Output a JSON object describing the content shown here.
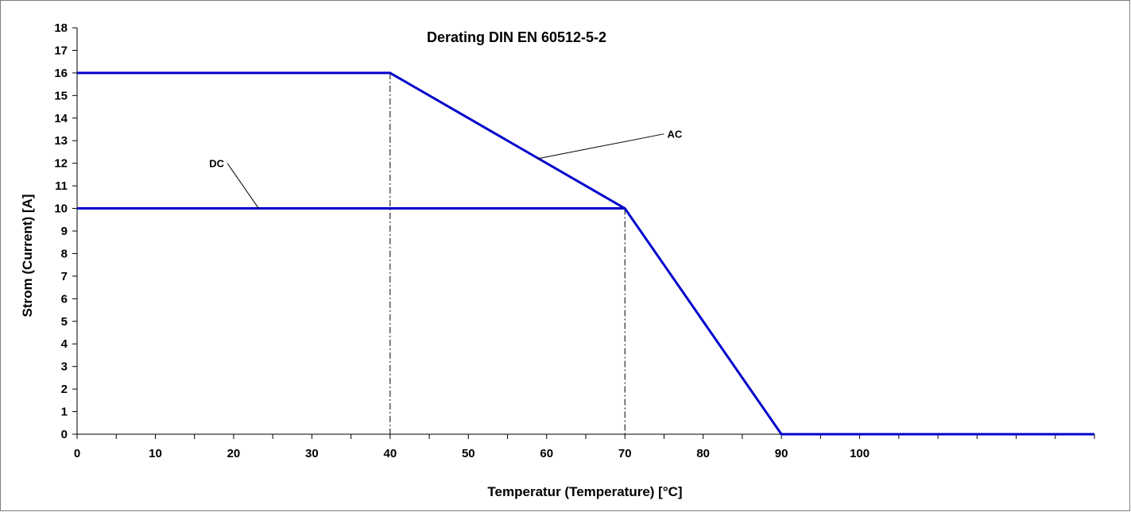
{
  "chart_data": {
    "type": "line",
    "title": "Derating DIN EN 60512-5-2",
    "xlabel": "Temperatur (Temperature) [°C]",
    "ylabel": "Strom (Current) [A]",
    "xlim": [
      0,
      130
    ],
    "ylim": [
      0,
      18
    ],
    "x_ticks": [
      0,
      10,
      20,
      30,
      40,
      50,
      60,
      70,
      80,
      90,
      100
    ],
    "x_minor_step": 5,
    "y_ticks": [
      0,
      1,
      2,
      3,
      4,
      5,
      6,
      7,
      8,
      9,
      10,
      11,
      12,
      13,
      14,
      15,
      16,
      17,
      18
    ],
    "grid": false,
    "series": [
      {
        "name": "AC",
        "color": "#0000cc",
        "points": [
          [
            0,
            16
          ],
          [
            40,
            16
          ],
          [
            70,
            10
          ],
          [
            90,
            0
          ],
          [
            130,
            0
          ]
        ]
      },
      {
        "name": "DC",
        "color": "#0000cc",
        "points": [
          [
            0,
            10
          ],
          [
            70,
            10
          ]
        ]
      }
    ],
    "annotations": [
      {
        "text": "AC",
        "leader_from": [
          58.8,
          12.2
        ],
        "leader_to": [
          75,
          13.3
        ]
      },
      {
        "text": "DC",
        "leader_from": [
          23.2,
          10
        ],
        "leader_to": [
          19.2,
          12
        ]
      }
    ],
    "reference_lines": [
      {
        "x": 40,
        "y_top": 16
      },
      {
        "x": 70,
        "y_top": 10
      }
    ]
  }
}
